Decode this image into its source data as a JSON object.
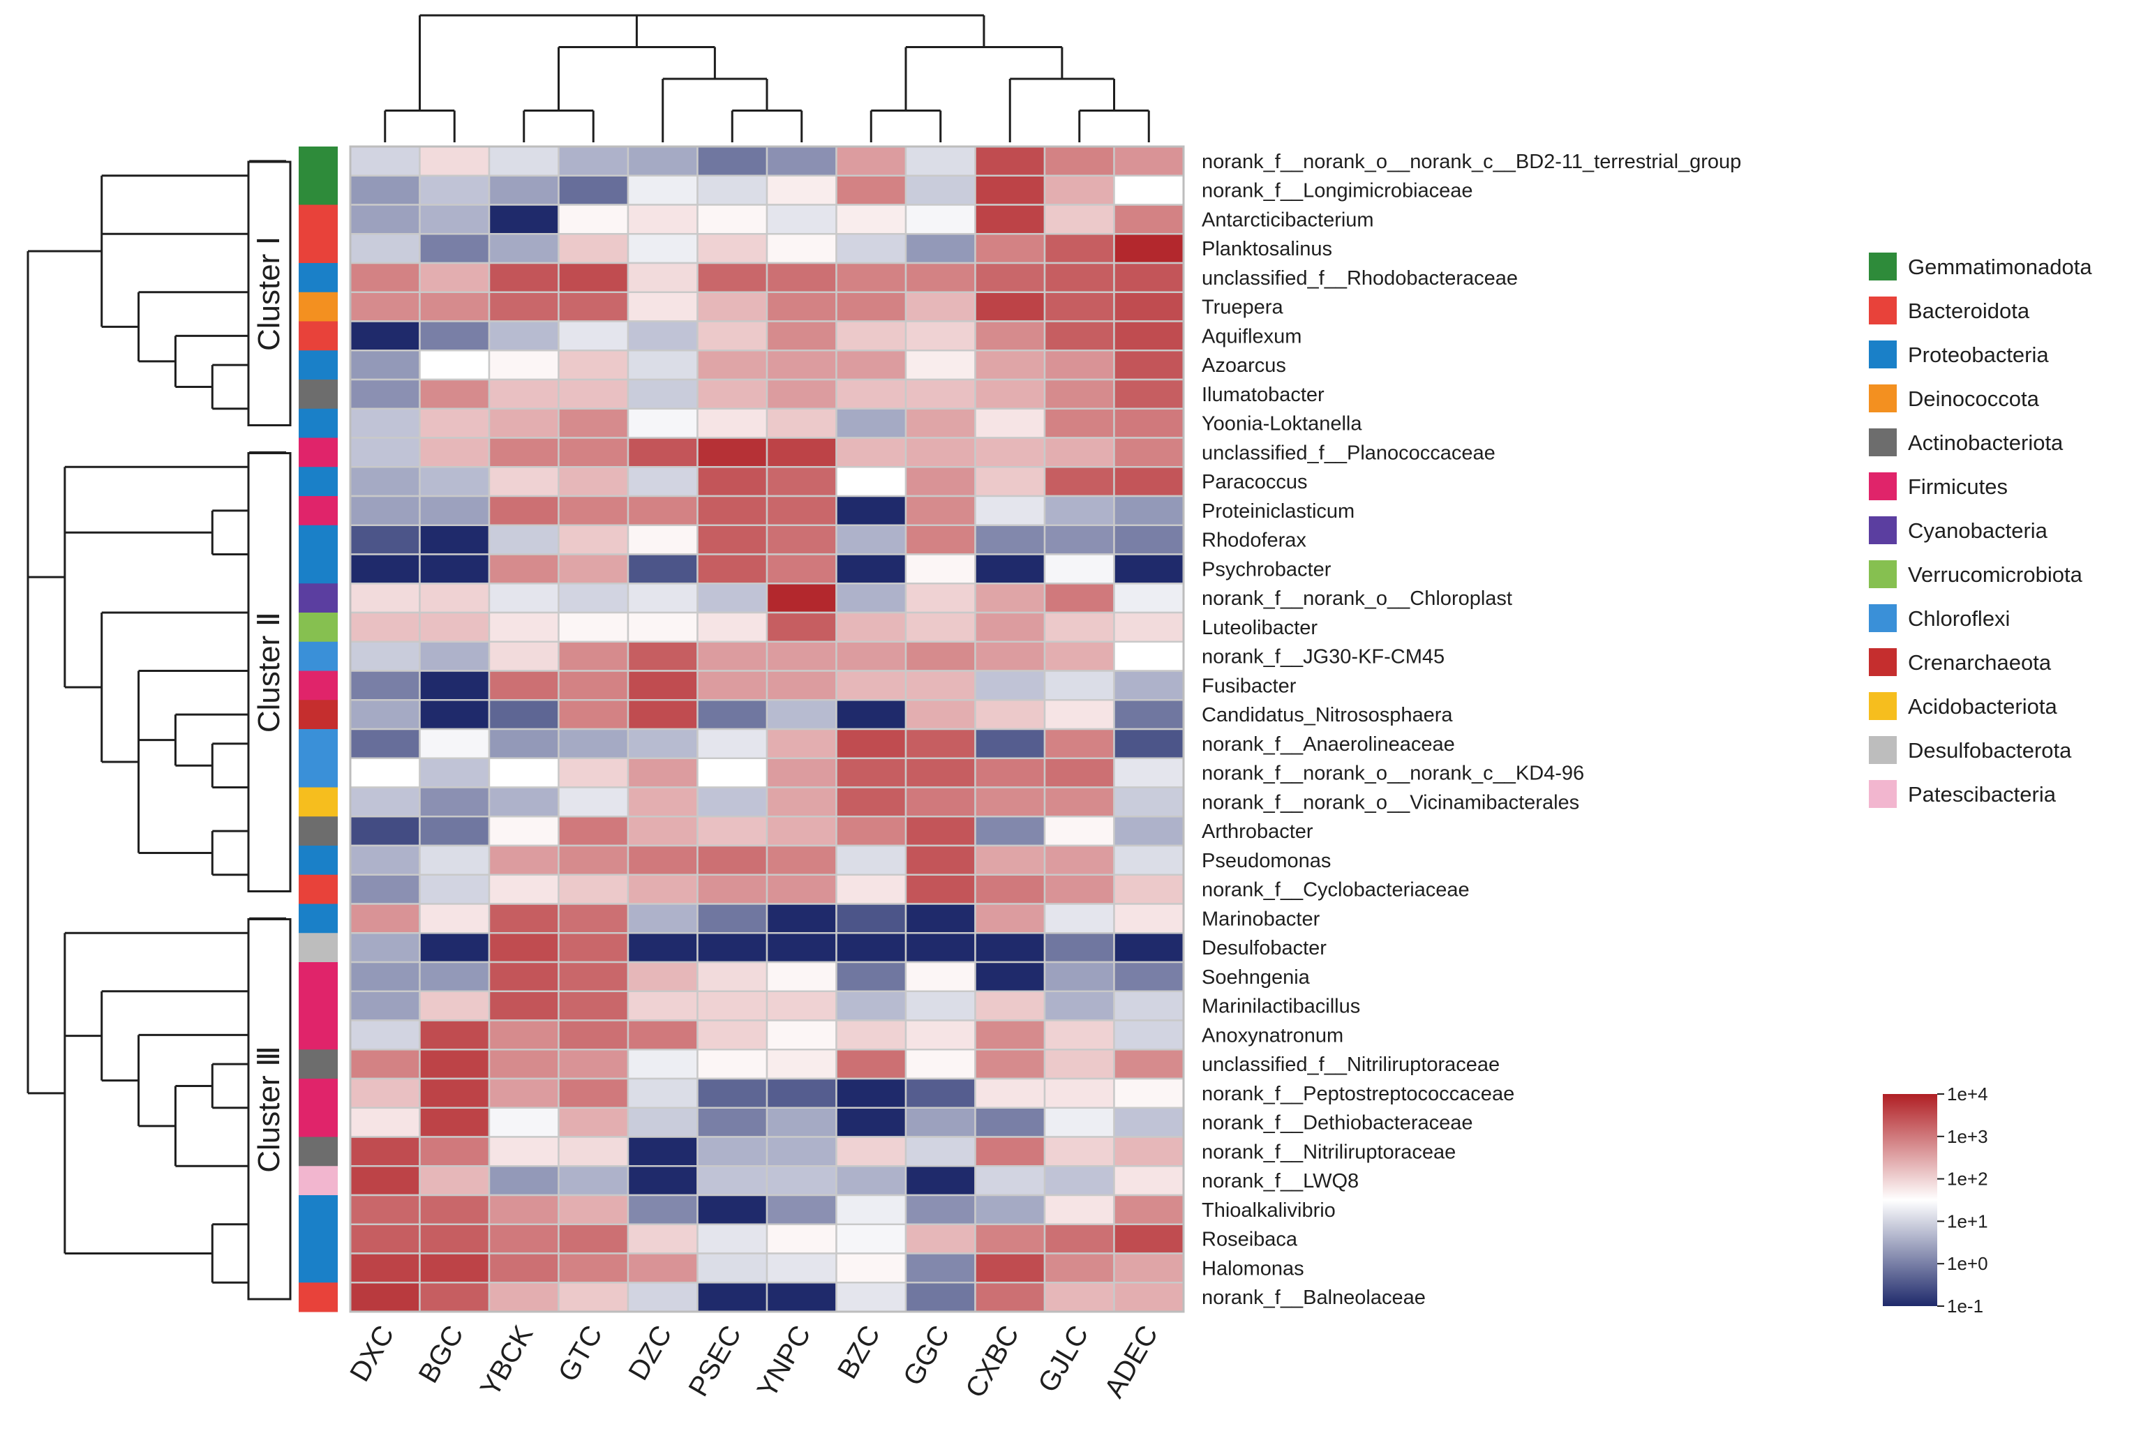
{
  "chart_data": {
    "type": "heatmap",
    "title": "",
    "columns": [
      "DXC",
      "BGC",
      "YBCK",
      "GTC",
      "DZC",
      "PSEC",
      "YNPC",
      "BZC",
      "GGC",
      "CXBC",
      "GJLC",
      "ADEC"
    ],
    "rows": [
      "norank_f__norank_o__norank_c__BD2-11_terrestrial_group",
      "norank_f__Longimicrobiaceae",
      "Antarcticibacterium",
      "Planktosalinus",
      "unclassified_f__Rhodobacteraceae",
      "Truepera",
      "Aquiflexum",
      "Azoarcus",
      "Ilumatobacter",
      "Yoonia-Loktanella",
      "unclassified_f__Planococcaceae",
      "Paracoccus",
      "Proteiniclasticum",
      "Rhodoferax",
      "Psychrobacter",
      "norank_f__norank_o__Chloroplast",
      "Luteolibacter",
      "norank_f__JG30-KF-CM45",
      "Fusibacter",
      "Candidatus_Nitrososphaera",
      "norank_f__Anaerolineaceae",
      "norank_f__norank_o__norank_c__KD4-96",
      "norank_f__norank_o__Vicinamibacterales",
      "Arthrobacter",
      "Pseudomonas",
      "norank_f__Cyclobacteriaceae",
      "Marinobacter",
      "Desulfobacter",
      "Soehngenia",
      "Marinilactibacillus",
      "Anoxynatronum",
      "unclassified_f__Nitriliruptoraceae",
      "norank_f__Peptostreptococcaceae",
      "norank_f__Dethiobacteraceae",
      "norank_f__Nitriliruptoraceae",
      "norank_f__LWQ8",
      "Thioalkalivibrio",
      "Roseibaca",
      "Halomonas",
      "norank_f__Balneolaceae"
    ],
    "values_log10": [
      [
        1.0,
        1.9,
        1.1,
        0.6,
        0.5,
        -0.1,
        0.2,
        2.6,
        1.1,
        3.5,
        2.9,
        2.7
      ],
      [
        0.3,
        0.8,
        0.4,
        -0.2,
        1.3,
        1.1,
        1.7,
        2.9,
        0.9,
        3.6,
        2.4,
        1.5
      ],
      [
        0.4,
        0.6,
        -1.0,
        1.6,
        1.8,
        1.6,
        1.2,
        1.7,
        1.4,
        3.6,
        2.1,
        2.9
      ],
      [
        0.9,
        0.0,
        0.5,
        2.1,
        1.3,
        2.0,
        1.6,
        1.0,
        0.3,
        2.9,
        3.3,
        3.9
      ],
      [
        2.9,
        2.4,
        3.4,
        3.5,
        1.9,
        3.2,
        3.1,
        2.9,
        2.9,
        3.2,
        3.3,
        3.4
      ],
      [
        2.8,
        2.8,
        3.2,
        3.2,
        1.8,
        2.3,
        2.9,
        2.9,
        2.3,
        3.6,
        3.3,
        3.5
      ],
      [
        -1.0,
        0.0,
        0.7,
        1.2,
        0.8,
        2.1,
        2.8,
        2.1,
        2.0,
        2.8,
        3.3,
        3.5
      ],
      [
        0.3,
        1.5,
        1.6,
        2.1,
        1.1,
        2.5,
        2.6,
        2.6,
        1.7,
        2.5,
        2.7,
        3.4
      ],
      [
        0.2,
        2.8,
        2.2,
        2.2,
        0.9,
        2.3,
        2.6,
        2.2,
        2.2,
        2.4,
        2.8,
        3.3
      ],
      [
        0.8,
        2.2,
        2.4,
        2.8,
        1.4,
        1.8,
        2.1,
        0.5,
        2.5,
        1.8,
        2.9,
        3.0
      ],
      [
        0.8,
        2.3,
        2.9,
        2.9,
        3.4,
        3.8,
        3.6,
        2.3,
        2.4,
        2.3,
        2.4,
        2.9
      ],
      [
        0.5,
        0.7,
        2.0,
        2.3,
        1.0,
        3.4,
        3.2,
        1.5,
        2.7,
        2.1,
        3.3,
        3.4
      ],
      [
        0.4,
        0.4,
        3.1,
        2.9,
        2.9,
        3.3,
        3.2,
        -1.0,
        2.8,
        1.2,
        0.6,
        0.3
      ],
      [
        -0.5,
        -1.0,
        0.9,
        2.1,
        1.6,
        3.3,
        3.1,
        0.6,
        2.9,
        0.1,
        0.2,
        0.0
      ],
      [
        -1.0,
        -1.0,
        2.8,
        2.5,
        -0.5,
        3.3,
        3.0,
        -1.0,
        1.6,
        -1.0,
        1.4,
        -1.0
      ],
      [
        1.9,
        2.0,
        1.2,
        1.0,
        1.2,
        0.8,
        3.9,
        0.6,
        2.0,
        2.5,
        3.0,
        1.3
      ],
      [
        2.2,
        2.2,
        1.8,
        1.6,
        1.6,
        1.8,
        3.3,
        2.3,
        2.1,
        2.6,
        2.1,
        1.9
      ],
      [
        0.9,
        0.6,
        1.9,
        2.8,
        3.3,
        2.6,
        2.6,
        2.6,
        2.8,
        2.6,
        2.4,
        1.5
      ],
      [
        0.0,
        -1.0,
        3.1,
        2.9,
        3.5,
        2.6,
        2.6,
        2.3,
        2.3,
        0.8,
        1.1,
        0.6
      ],
      [
        0.5,
        -1.0,
        -0.3,
        2.9,
        3.5,
        -0.1,
        0.7,
        -1.0,
        2.4,
        2.1,
        1.8,
        -0.1
      ],
      [
        -0.2,
        1.4,
        0.3,
        0.5,
        0.7,
        1.2,
        2.4,
        3.5,
        3.3,
        -0.4,
        2.9,
        -0.5
      ],
      [
        1.5,
        0.8,
        1.5,
        2.0,
        2.6,
        1.5,
        2.6,
        3.3,
        3.3,
        3.0,
        3.1,
        1.2
      ],
      [
        0.8,
        0.2,
        0.6,
        1.2,
        2.4,
        0.8,
        2.5,
        3.3,
        3.0,
        2.8,
        2.8,
        0.9
      ],
      [
        -0.6,
        -0.1,
        1.6,
        3.0,
        2.4,
        2.2,
        2.4,
        2.9,
        3.4,
        0.1,
        1.6,
        0.6
      ],
      [
        0.6,
        1.1,
        2.6,
        2.8,
        3.0,
        3.1,
        2.9,
        1.1,
        3.4,
        2.5,
        2.6,
        1.1
      ],
      [
        0.2,
        1.0,
        1.8,
        2.1,
        2.4,
        2.7,
        2.7,
        1.8,
        3.4,
        3.0,
        2.7,
        2.1
      ],
      [
        2.7,
        1.8,
        3.3,
        3.1,
        0.6,
        -0.1,
        -1.0,
        -0.5,
        -1.0,
        2.6,
        1.2,
        1.8
      ],
      [
        0.5,
        -1.0,
        3.5,
        3.2,
        -1.0,
        -1.0,
        -1.0,
        -1.0,
        -1.0,
        -1.0,
        -0.1,
        -1.0
      ],
      [
        0.3,
        0.3,
        3.4,
        3.2,
        2.3,
        1.9,
        1.6,
        -0.1,
        1.6,
        -1.0,
        0.4,
        0.0
      ],
      [
        0.4,
        2.1,
        3.4,
        3.2,
        2.0,
        2.0,
        2.0,
        0.7,
        1.1,
        2.1,
        0.6,
        1.0
      ],
      [
        1.0,
        3.5,
        2.8,
        3.1,
        3.0,
        2.0,
        1.6,
        2.0,
        1.8,
        2.8,
        2.0,
        1.0
      ],
      [
        2.9,
        3.6,
        2.8,
        2.7,
        1.3,
        1.6,
        1.7,
        3.1,
        1.6,
        2.8,
        2.1,
        2.8
      ],
      [
        2.2,
        3.6,
        2.6,
        3.0,
        1.1,
        -0.3,
        -0.4,
        -1.0,
        -0.4,
        1.8,
        1.8,
        1.6
      ],
      [
        1.8,
        3.6,
        1.4,
        2.4,
        0.9,
        0.0,
        0.5,
        -1.0,
        0.4,
        0.0,
        1.3,
        0.8
      ],
      [
        3.5,
        3.0,
        1.8,
        1.9,
        -1.0,
        0.6,
        0.6,
        2.0,
        1.0,
        3.0,
        2.0,
        2.3
      ],
      [
        3.6,
        2.3,
        0.3,
        0.6,
        -1.0,
        0.8,
        0.8,
        0.6,
        -1.0,
        1.0,
        0.8,
        1.8
      ],
      [
        3.2,
        3.2,
        2.7,
        2.4,
        0.1,
        -1.0,
        0.2,
        1.3,
        0.2,
        0.5,
        1.8,
        2.8
      ],
      [
        3.3,
        3.3,
        3.0,
        3.1,
        2.0,
        1.2,
        1.6,
        1.4,
        2.3,
        2.9,
        3.1,
        3.5
      ],
      [
        3.6,
        3.6,
        3.1,
        2.9,
        2.7,
        1.1,
        1.2,
        1.6,
        0.1,
        3.5,
        2.8,
        2.5
      ],
      [
        3.7,
        3.3,
        2.4,
        2.1,
        1.0,
        -1.0,
        -1.0,
        1.2,
        -0.1,
        3.1,
        2.3,
        2.4
      ]
    ],
    "row_phylum": [
      "Gemmatimonadota",
      "Gemmatimonadota",
      "Bacteroidota",
      "Bacteroidota",
      "Proteobacteria",
      "Deinococcota",
      "Bacteroidota",
      "Proteobacteria",
      "Actinobacteriota",
      "Proteobacteria",
      "Firmicutes",
      "Proteobacteria",
      "Firmicutes",
      "Proteobacteria",
      "Proteobacteria",
      "Cyanobacteria",
      "Verrucomicrobiota",
      "Chloroflexi",
      "Firmicutes",
      "Crenarchaeota",
      "Chloroflexi",
      "Chloroflexi",
      "Acidobacteriota",
      "Actinobacteriota",
      "Proteobacteria",
      "Bacteroidota",
      "Proteobacteria",
      "Desulfobacterota",
      "Firmicutes",
      "Firmicutes",
      "Firmicutes",
      "Actinobacteriota",
      "Firmicutes",
      "Firmicutes",
      "Actinobacteriota",
      "Patescibacteria",
      "Proteobacteria",
      "Proteobacteria",
      "Proteobacteria",
      "Bacteroidota"
    ],
    "legend": [
      {
        "name": "Gemmatimonadota",
        "color": "#2e8b3a"
      },
      {
        "name": "Bacteroidota",
        "color": "#e8423a"
      },
      {
        "name": "Proteobacteria",
        "color": "#1a80c8"
      },
      {
        "name": "Deinococcota",
        "color": "#f39020"
      },
      {
        "name": "Actinobacteriota",
        "color": "#6d6d6d"
      },
      {
        "name": "Firmicutes",
        "color": "#e0246a"
      },
      {
        "name": "Cyanobacteria",
        "color": "#5b3ea0"
      },
      {
        "name": "Verrucomicrobiota",
        "color": "#86c050"
      },
      {
        "name": "Chloroflexi",
        "color": "#3a90d8"
      },
      {
        "name": "Crenarchaeota",
        "color": "#c52e2e"
      },
      {
        "name": "Acidobacteriota",
        "color": "#f6be1e"
      },
      {
        "name": "Desulfobacterota",
        "color": "#bdbdbd"
      },
      {
        "name": "Patescibacteria",
        "color": "#f2b6cf"
      }
    ],
    "clusters": [
      {
        "label": "Cluster Ⅰ",
        "first_row": 0,
        "last_row": 9
      },
      {
        "label": "Cluster Ⅱ",
        "first_row": 10,
        "last_row": 25
      },
      {
        "label": "Cluster Ⅲ",
        "first_row": 26,
        "last_row": 39
      }
    ],
    "color_scale": {
      "min": -1,
      "max": 4,
      "low_color": "#1f2a6b",
      "mid_color": "#ffffff",
      "high_color": "#b01f24",
      "tick_labels": [
        "1e+4",
        "1e+3",
        "1e+2",
        "1e+1",
        "1e+0",
        "1e-1"
      ]
    },
    "column_dendrogram": "((DXC,BGC),((YBCK,GTC),(DZC,(PSEC,YNPC))),((BZC,GGC),(CXBC,(GJLC,ADEC))))",
    "row_dendrogram": "(((1,2),(3,4),((5,6),(7,(8,(9,10))))),((11,12),(13,(14,15)),((16,17),((18,19),(20,(21,(22,23))),(24,(25,26))))),((27,28),((29,30),(31,((32,(33,34)),(35,36)))),((37,38),(39,40))))"
  }
}
